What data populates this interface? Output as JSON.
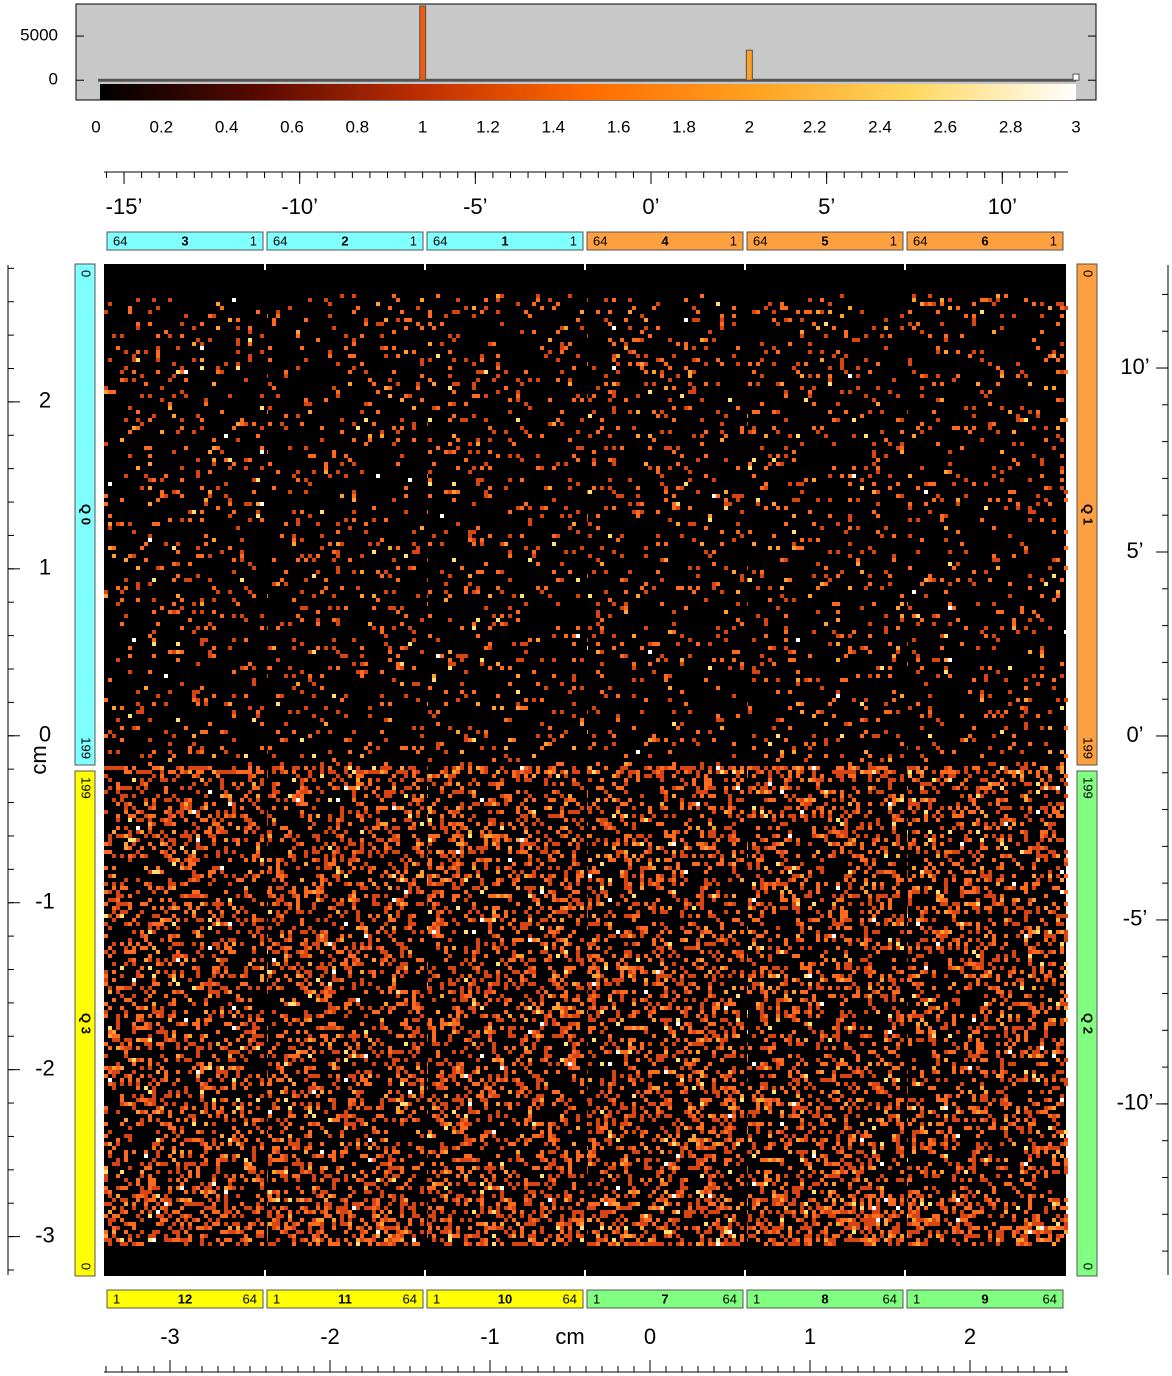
{
  "histogram": {
    "xlim": [
      0,
      3
    ],
    "xticks": [
      0,
      0.2,
      0.4,
      0.6,
      0.8,
      1,
      1.2,
      1.4,
      1.6,
      1.8,
      2,
      2.2,
      2.4,
      2.6,
      2.8,
      3
    ],
    "ylim": [
      -200,
      8400
    ],
    "yticks": [
      0,
      5000
    ],
    "bars": [
      {
        "x": 1,
        "value": 8400,
        "color": "#f05a10"
      },
      {
        "x": 2,
        "value": 3400,
        "color": "#ffa020"
      },
      {
        "x": 3,
        "value": 700,
        "color": "#ffffff"
      }
    ],
    "colormap": [
      "#000000",
      "#5a0a00",
      "#c03000",
      "#ff6a00",
      "#ffa020",
      "#ffd860",
      "#ffffff"
    ]
  },
  "top_axis": {
    "xlim": [
      -15.57,
      11.87
    ],
    "minor_step": 0.5,
    "ticks": [
      {
        "value": -15,
        "label": "-15’"
      },
      {
        "value": -10,
        "label": "-10’"
      },
      {
        "value": -5,
        "label": "-5’"
      },
      {
        "value": 0,
        "label": "0’"
      },
      {
        "value": 5,
        "label": "5’"
      },
      {
        "value": 10,
        "label": "10’"
      }
    ]
  },
  "bottom_axis": {
    "label": "cm",
    "xlim": [
      -3.4125,
      2.6125
    ],
    "minor_step": 0.1,
    "ticks": [
      -3,
      -2,
      -1,
      0,
      1,
      2
    ]
  },
  "left_axis": {
    "label": "cm",
    "ylim": [
      2.82,
      -3.23
    ],
    "minor_step": 0.2,
    "ticks": [
      2,
      1,
      0,
      -1,
      -2,
      -3
    ]
  },
  "right_axis": {
    "ylim": [
      12.8,
      -14.65
    ],
    "minor_step": 1,
    "ticks": [
      {
        "value": 10,
        "label": "10’"
      },
      {
        "value": 5,
        "label": "5’"
      },
      {
        "value": 0,
        "label": "0’"
      },
      {
        "value": -5,
        "label": "-5’"
      },
      {
        "value": -10,
        "label": "-10’"
      }
    ]
  },
  "top_modules": [
    {
      "left": "64",
      "id": "3",
      "right": "1",
      "color": "#80ffff"
    },
    {
      "left": "64",
      "id": "2",
      "right": "1",
      "color": "#80ffff"
    },
    {
      "left": "64",
      "id": "1",
      "right": "1",
      "color": "#80ffff"
    },
    {
      "left": "64",
      "id": "4",
      "right": "1",
      "color": "#ffa040"
    },
    {
      "left": "64",
      "id": "5",
      "right": "1",
      "color": "#ffa040"
    },
    {
      "left": "64",
      "id": "6",
      "right": "1",
      "color": "#ffa040"
    }
  ],
  "bottom_modules": [
    {
      "left": "1",
      "id": "12",
      "right": "64",
      "color": "#ffff00"
    },
    {
      "left": "1",
      "id": "11",
      "right": "64",
      "color": "#ffff00"
    },
    {
      "left": "1",
      "id": "10",
      "right": "64",
      "color": "#ffff00"
    },
    {
      "left": "1",
      "id": "7",
      "right": "64",
      "color": "#80ff80"
    },
    {
      "left": "1",
      "id": "8",
      "right": "64",
      "color": "#80ff80"
    },
    {
      "left": "1",
      "id": "9",
      "right": "64",
      "color": "#80ff80"
    }
  ],
  "quadrants": [
    {
      "name": "Q 0",
      "top_label": "0",
      "bottom_label": "199",
      "color": "#80ffff"
    },
    {
      "name": "Q 3",
      "top_label": "199",
      "bottom_label": "0",
      "color": "#ffff00"
    },
    {
      "name": "Q 1",
      "top_label": "0",
      "bottom_label": "199",
      "color": "#ffa040"
    },
    {
      "name": "Q 2",
      "top_label": "199",
      "bottom_label": "0",
      "color": "#80ff80"
    }
  ]
}
